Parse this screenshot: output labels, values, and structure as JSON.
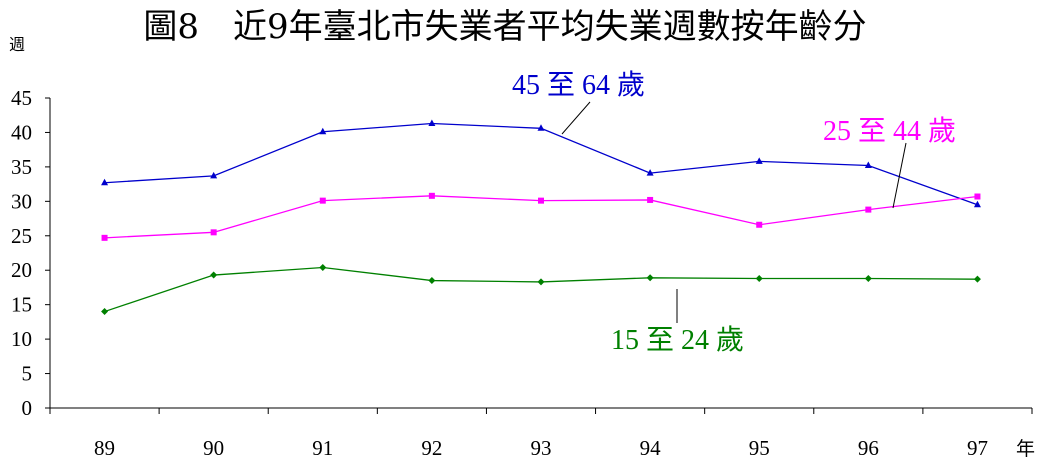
{
  "chart_data": {
    "type": "line",
    "title": "圖8　近9年臺北市失業者平均失業週數按年齡分",
    "ylabel": "週",
    "xlabel": "年",
    "categories": [
      "89",
      "90",
      "91",
      "92",
      "93",
      "94",
      "95",
      "96",
      "97"
    ],
    "ylim": [
      0,
      45
    ],
    "yticks": [
      0,
      5,
      10,
      15,
      20,
      25,
      30,
      35,
      40,
      45
    ],
    "grid": false,
    "legend": "none",
    "series": [
      {
        "name": "45 至 64 歲",
        "color": "#0000cc",
        "marker": "triangle",
        "values": [
          32.7,
          33.7,
          40.1,
          41.3,
          40.6,
          34.1,
          35.8,
          35.2,
          29.5
        ]
      },
      {
        "name": "25 至 44 歲",
        "color": "#ff00ff",
        "marker": "square",
        "values": [
          24.7,
          25.5,
          30.1,
          30.8,
          30.1,
          30.2,
          26.6,
          28.8,
          30.7
        ]
      },
      {
        "name": "15 至 24 歲",
        "color": "#008000",
        "marker": "diamond",
        "values": [
          14.0,
          19.3,
          20.4,
          18.5,
          18.3,
          18.9,
          18.8,
          18.8,
          18.7
        ]
      }
    ]
  }
}
